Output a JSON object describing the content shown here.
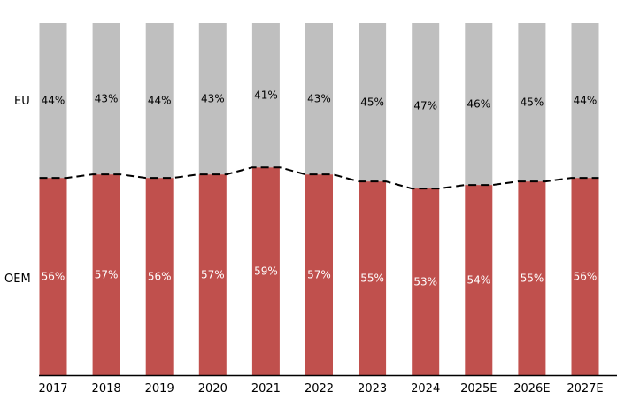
{
  "chart_data": {
    "type": "bar",
    "stacked": true,
    "categories": [
      "2017",
      "2018",
      "2019",
      "2020",
      "2021",
      "2022",
      "2023",
      "2024",
      "2025E",
      "2026E",
      "2027E"
    ],
    "series": [
      {
        "name": "OEM",
        "values": [
          56,
          57,
          56,
          57,
          59,
          57,
          55,
          53,
          54,
          55,
          56
        ],
        "labels": [
          "56%",
          "57%",
          "56%",
          "57%",
          "59%",
          "57%",
          "55%",
          "53%",
          "54%",
          "55%",
          "56%"
        ],
        "color": "#c0504d",
        "label_color": "#ffffff"
      },
      {
        "name": "EU",
        "values": [
          44,
          43,
          44,
          43,
          41,
          43,
          45,
          47,
          46,
          45,
          44
        ],
        "labels": [
          "44%",
          "43%",
          "44%",
          "43%",
          "41%",
          "43%",
          "45%",
          "47%",
          "46%",
          "45%",
          "44%"
        ],
        "color": "#bfbfbf",
        "label_color": "#000000"
      }
    ],
    "ylim": [
      0,
      100
    ],
    "grid": false,
    "legend": "series names printed at left of the stacks",
    "boundary_line": {
      "style": "dashed",
      "color": "#000000"
    },
    "axis_color": "#000000"
  }
}
